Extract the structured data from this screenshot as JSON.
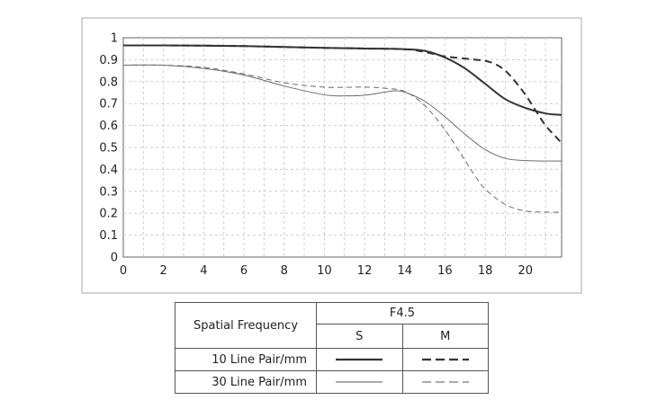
{
  "chart_data": {
    "type": "line",
    "title": "",
    "xlabel": "",
    "ylabel": "",
    "xlim": [
      0,
      21.8
    ],
    "ylim": [
      0,
      1
    ],
    "x_ticks": [
      "0",
      "2",
      "4",
      "6",
      "8",
      "10",
      "12",
      "14",
      "16",
      "18",
      "20"
    ],
    "y_ticks": [
      "0",
      "0.1",
      "0.2",
      "0.3",
      "0.4",
      "0.5",
      "0.6",
      "0.7",
      "0.8",
      "0.9",
      "1"
    ],
    "grid": true,
    "series": [
      {
        "name": "10 Line Pair/mm S",
        "style": "solid",
        "weight": "thick",
        "x": [
          0,
          2,
          4,
          6,
          8,
          10,
          12,
          14,
          15,
          16,
          17,
          18,
          19,
          20,
          21,
          21.8
        ],
        "y": [
          0.965,
          0.965,
          0.964,
          0.962,
          0.958,
          0.954,
          0.951,
          0.948,
          0.94,
          0.91,
          0.86,
          0.79,
          0.72,
          0.68,
          0.655,
          0.648
        ]
      },
      {
        "name": "10 Line Pair/mm M",
        "style": "dashed",
        "weight": "thick",
        "x": [
          0,
          2,
          4,
          6,
          8,
          10,
          12,
          14,
          15,
          16,
          17,
          17.5,
          18,
          18.5,
          19,
          19.5,
          20,
          20.5,
          21,
          21.5,
          21.8
        ],
        "y": [
          0.965,
          0.965,
          0.964,
          0.962,
          0.958,
          0.954,
          0.951,
          0.948,
          0.935,
          0.915,
          0.905,
          0.9,
          0.895,
          0.88,
          0.85,
          0.8,
          0.74,
          0.67,
          0.6,
          0.55,
          0.52
        ]
      },
      {
        "name": "30 Line Pair/mm S",
        "style": "solid",
        "weight": "thin",
        "x": [
          0,
          2,
          4,
          6,
          8,
          10,
          11,
          12,
          13,
          13.5,
          14,
          15,
          16,
          17,
          18,
          19,
          20,
          21,
          21.8
        ],
        "y": [
          0.875,
          0.875,
          0.86,
          0.83,
          0.78,
          0.74,
          0.735,
          0.738,
          0.752,
          0.758,
          0.752,
          0.71,
          0.64,
          0.56,
          0.49,
          0.45,
          0.44,
          0.438,
          0.438
        ]
      },
      {
        "name": "30 Line Pair/mm M",
        "style": "dashed",
        "weight": "thin",
        "x": [
          0,
          2,
          4,
          6,
          8,
          10,
          12,
          13,
          14,
          15,
          16,
          17,
          17.5,
          18,
          19,
          20,
          21,
          21.8
        ],
        "y": [
          0.875,
          0.875,
          0.865,
          0.835,
          0.795,
          0.775,
          0.775,
          0.77,
          0.755,
          0.69,
          0.58,
          0.44,
          0.37,
          0.31,
          0.24,
          0.21,
          0.205,
          0.205
        ]
      }
    ]
  },
  "legend": {
    "header_label": "Spatial Frequency",
    "aperture": "F4.5",
    "col_s": "S",
    "col_m": "M",
    "rows": [
      {
        "label": "10 Line Pair/mm"
      },
      {
        "label": "30 Line Pair/mm"
      }
    ]
  }
}
